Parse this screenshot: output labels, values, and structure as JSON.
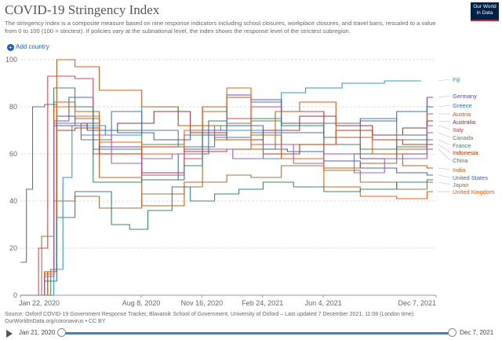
{
  "title": "COVID-19 Stringency Index",
  "subtitle": "The stringency index is a composite measure based on nine response indicators including school closures, workplace closures, and travel bans, rescaled to a value from 0 to 100 (100 = strictest). If policies vary at the subnational level, the index shows the response level of the strictest subregion.",
  "logo": {
    "line1": "Our World",
    "line2": "in Data"
  },
  "add_country_label": "Add country",
  "source": "Source: Oxford COVID-19 Government Response Tracker, Blavatnik School of Government, University of Oxford – Last updated 7 December 2021, 11:08 (London time)",
  "source_url": "OurWorldInData.org/coronavirus • CC BY",
  "timeline": {
    "start": "Jan 21, 2020",
    "end": "Dec 7, 2021",
    "start_fraction": 0,
    "end_fraction": 1
  },
  "chart_data": {
    "type": "line",
    "x_ticks": [
      "Jan 22, 2020",
      "Aug 8, 2020",
      "Nov 16, 2020",
      "Feb 24, 2021",
      "Jun 4, 2021",
      "Dec 7, 2021"
    ],
    "x_tick_days": [
      0,
      199,
      299,
      399,
      499,
      685
    ],
    "x_range_days": [
      0,
      685
    ],
    "y_ticks": [
      0,
      20,
      40,
      60,
      80,
      100
    ],
    "ylim": [
      0,
      100
    ],
    "grid": "horizontal dashed",
    "legend": "right, labels at line ends",
    "series": [
      {
        "name": "Fiji",
        "color": "#2a93b8",
        "points": [
          [
            0,
            0
          ],
          [
            55,
            11
          ],
          [
            70,
            50
          ],
          [
            85,
            72
          ],
          [
            140,
            68
          ],
          [
            200,
            80
          ],
          [
            260,
            72
          ],
          [
            330,
            70
          ],
          [
            400,
            58
          ],
          [
            430,
            86
          ],
          [
            470,
            88
          ],
          [
            530,
            90
          ],
          [
            600,
            91
          ],
          [
            650,
            91
          ]
        ]
      },
      {
        "name": "Germany",
        "color": "#6d3e91",
        "points": [
          [
            0,
            0
          ],
          [
            45,
            10
          ],
          [
            60,
            76
          ],
          [
            90,
            73
          ],
          [
            130,
            63
          ],
          [
            200,
            52
          ],
          [
            270,
            62
          ],
          [
            300,
            68
          ],
          [
            340,
            85
          ],
          [
            380,
            83
          ],
          [
            430,
            73
          ],
          [
            500,
            60
          ],
          [
            560,
            58
          ],
          [
            620,
            60
          ],
          [
            670,
            84
          ]
        ]
      },
      {
        "name": "Greece",
        "color": "#286bbb",
        "points": [
          [
            0,
            0
          ],
          [
            40,
            8
          ],
          [
            55,
            74
          ],
          [
            80,
            84
          ],
          [
            120,
            62
          ],
          [
            200,
            49
          ],
          [
            260,
            60
          ],
          [
            310,
            74
          ],
          [
            340,
            84
          ],
          [
            380,
            82
          ],
          [
            430,
            78
          ],
          [
            500,
            67
          ],
          [
            560,
            74
          ],
          [
            620,
            78
          ],
          [
            670,
            80
          ]
        ]
      },
      {
        "name": "Austria",
        "color": "#c05917",
        "points": [
          [
            0,
            0
          ],
          [
            45,
            10
          ],
          [
            55,
            82
          ],
          [
            90,
            78
          ],
          [
            130,
            50
          ],
          [
            200,
            38
          ],
          [
            270,
            48
          ],
          [
            300,
            78
          ],
          [
            340,
            84
          ],
          [
            380,
            68
          ],
          [
            430,
            64
          ],
          [
            500,
            54
          ],
          [
            560,
            56
          ],
          [
            620,
            62
          ],
          [
            670,
            77
          ]
        ]
      },
      {
        "name": "Australia",
        "color": "#883039",
        "points": [
          [
            0,
            0
          ],
          [
            40,
            10
          ],
          [
            60,
            73
          ],
          [
            110,
            70
          ],
          [
            160,
            73
          ],
          [
            220,
            78
          ],
          [
            280,
            69
          ],
          [
            340,
            66
          ],
          [
            400,
            70
          ],
          [
            460,
            76
          ],
          [
            520,
            72
          ],
          [
            580,
            68
          ],
          [
            630,
            71
          ],
          [
            670,
            74
          ]
        ]
      },
      {
        "name": "Italy",
        "color": "#d73c50",
        "points": [
          [
            0,
            0
          ],
          [
            30,
            20
          ],
          [
            45,
            93
          ],
          [
            90,
            92
          ],
          [
            120,
            60
          ],
          [
            200,
            51
          ],
          [
            270,
            58
          ],
          [
            300,
            80
          ],
          [
            340,
            75
          ],
          [
            380,
            80
          ],
          [
            430,
            78
          ],
          [
            500,
            67
          ],
          [
            560,
            62
          ],
          [
            620,
            68
          ],
          [
            670,
            72
          ]
        ]
      },
      {
        "name": "Canada",
        "color": "#578145",
        "points": [
          [
            0,
            0
          ],
          [
            50,
            11
          ],
          [
            60,
            72
          ],
          [
            90,
            75
          ],
          [
            130,
            70
          ],
          [
            200,
            64
          ],
          [
            270,
            68
          ],
          [
            300,
            72
          ],
          [
            340,
            73
          ],
          [
            380,
            74
          ],
          [
            430,
            72
          ],
          [
            500,
            67
          ],
          [
            560,
            62
          ],
          [
            620,
            66
          ],
          [
            670,
            69
          ]
        ]
      },
      {
        "name": "France",
        "color": "#2c8465",
        "points": [
          [
            0,
            0
          ],
          [
            40,
            8
          ],
          [
            55,
            88
          ],
          [
            90,
            80
          ],
          [
            120,
            48
          ],
          [
            200,
            49
          ],
          [
            270,
            55
          ],
          [
            300,
            80
          ],
          [
            340,
            72
          ],
          [
            380,
            75
          ],
          [
            430,
            72
          ],
          [
            500,
            64
          ],
          [
            560,
            60
          ],
          [
            620,
            63
          ],
          [
            670,
            66
          ]
        ]
      },
      {
        "name": "Indonesia",
        "color": "#b13507",
        "points": [
          [
            0,
            0
          ],
          [
            40,
            10
          ],
          [
            60,
            70
          ],
          [
            90,
            71
          ],
          [
            130,
            60
          ],
          [
            200,
            63
          ],
          [
            270,
            61
          ],
          [
            340,
            62
          ],
          [
            400,
            60
          ],
          [
            460,
            64
          ],
          [
            520,
            70
          ],
          [
            580,
            66
          ],
          [
            630,
            64
          ],
          [
            670,
            64
          ]
        ]
      },
      {
        "name": "China",
        "color": "#4c6a9c",
        "points": [
          [
            0,
            14
          ],
          [
            10,
            45
          ],
          [
            20,
            80
          ],
          [
            40,
            81
          ],
          [
            60,
            73
          ],
          [
            100,
            66
          ],
          [
            150,
            78
          ],
          [
            200,
            70
          ],
          [
            260,
            63
          ],
          [
            320,
            67
          ],
          [
            380,
            69
          ],
          [
            440,
            69
          ],
          [
            500,
            73
          ],
          [
            560,
            75
          ],
          [
            620,
            68
          ],
          [
            670,
            62
          ]
        ]
      },
      {
        "name": "India",
        "color": "#be5915",
        "points": [
          [
            0,
            0
          ],
          [
            40,
            10
          ],
          [
            60,
            100
          ],
          [
            90,
            97
          ],
          [
            130,
            87
          ],
          [
            200,
            80
          ],
          [
            260,
            72
          ],
          [
            320,
            66
          ],
          [
            380,
            62
          ],
          [
            420,
            78
          ],
          [
            460,
            82
          ],
          [
            520,
            67
          ],
          [
            580,
            60
          ],
          [
            630,
            55
          ],
          [
            670,
            54
          ]
        ]
      },
      {
        "name": "United States",
        "color": "#3f5fa0",
        "points": [
          [
            0,
            0
          ],
          [
            40,
            8
          ],
          [
            55,
            72
          ],
          [
            110,
            70
          ],
          [
            160,
            69
          ],
          [
            220,
            66
          ],
          [
            280,
            70
          ],
          [
            340,
            72
          ],
          [
            400,
            62
          ],
          [
            440,
            61
          ],
          [
            500,
            57
          ],
          [
            560,
            54
          ],
          [
            620,
            52
          ],
          [
            670,
            51
          ]
        ]
      },
      {
        "name": "Japan",
        "color": "#996d39",
        "points": [
          [
            0,
            0
          ],
          [
            35,
            25
          ],
          [
            55,
            40
          ],
          [
            90,
            42
          ],
          [
            130,
            37
          ],
          [
            200,
            43
          ],
          [
            270,
            46
          ],
          [
            300,
            48
          ],
          [
            340,
            51
          ],
          [
            380,
            50
          ],
          [
            430,
            55
          ],
          [
            500,
            53
          ],
          [
            560,
            48
          ],
          [
            620,
            45
          ],
          [
            670,
            48
          ]
        ]
      },
      {
        "name": "United Kingdom",
        "color": "#e4580b",
        "points": [
          [
            0,
            0
          ],
          [
            40,
            9
          ],
          [
            55,
            80
          ],
          [
            90,
            76
          ],
          [
            130,
            65
          ],
          [
            200,
            60
          ],
          [
            270,
            70
          ],
          [
            300,
            80
          ],
          [
            340,
            88
          ],
          [
            380,
            64
          ],
          [
            430,
            58
          ],
          [
            500,
            46
          ],
          [
            560,
            42
          ],
          [
            620,
            41
          ],
          [
            670,
            44
          ]
        ]
      },
      {
        "name": "",
        "color": "#2f7f6f",
        "points": [
          [
            0,
            0
          ],
          [
            40,
            6
          ],
          [
            60,
            33
          ],
          [
            90,
            44
          ],
          [
            120,
            44
          ],
          [
            150,
            30
          ],
          [
            180,
            28
          ],
          [
            210,
            36
          ],
          [
            250,
            46
          ],
          [
            280,
            40
          ],
          [
            320,
            43
          ],
          [
            360,
            45
          ],
          [
            400,
            48
          ],
          [
            450,
            46
          ],
          [
            500,
            44
          ],
          [
            560,
            45
          ],
          [
            620,
            48
          ],
          [
            670,
            49
          ]
        ]
      },
      {
        "name": "",
        "color": "#9a5cad",
        "points": [
          [
            0,
            0
          ],
          [
            40,
            8
          ],
          [
            55,
            73
          ],
          [
            100,
            68
          ],
          [
            150,
            56
          ],
          [
            200,
            58
          ],
          [
            250,
            60
          ],
          [
            300,
            62
          ],
          [
            350,
            58
          ],
          [
            400,
            64
          ],
          [
            450,
            56
          ],
          [
            500,
            60
          ],
          [
            550,
            52
          ],
          [
            600,
            58
          ],
          [
            670,
            72
          ]
        ]
      }
    ],
    "labels": [
      {
        "name": "Fiji",
        "color": "#2a93b8"
      },
      {
        "name": "Germany",
        "color": "#6d3e91"
      },
      {
        "name": "Greece",
        "color": "#286bbb"
      },
      {
        "name": "Austria",
        "color": "#c05917"
      },
      {
        "name": "Australia",
        "color": "#883039"
      },
      {
        "name": "Italy",
        "color": "#d73c50"
      },
      {
        "name": "Canada",
        "color": "#578145"
      },
      {
        "name": "France",
        "color": "#2c8465"
      },
      {
        "name": "Indonesia",
        "color": "#b13507"
      },
      {
        "name": "China",
        "color": "#4c6a9c"
      },
      {
        "name": "India",
        "color": "#be5915"
      },
      {
        "name": "United States",
        "color": "#3f5fa0"
      },
      {
        "name": "Japan",
        "color": "#996d39"
      },
      {
        "name": "United Kingdom",
        "color": "#e4580b"
      }
    ]
  }
}
